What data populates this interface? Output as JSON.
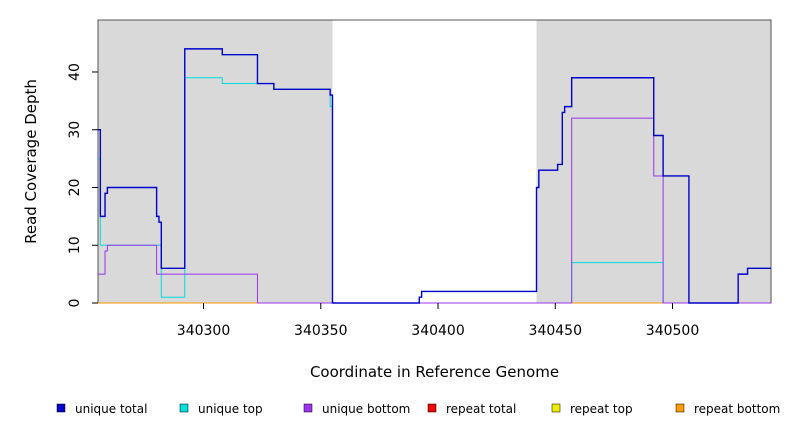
{
  "chart_data": {
    "type": "line",
    "title": "",
    "xlabel": "Coordinate in Reference Genome",
    "ylabel": "Read Coverage Depth",
    "xlim": [
      340255,
      340542
    ],
    "ylim": [
      0,
      49
    ],
    "x_ticks": [
      340300,
      340350,
      340400,
      340450,
      340500
    ],
    "y_ticks": [
      0,
      10,
      20,
      30,
      40
    ],
    "grid": false,
    "legend_position": "bottom",
    "shaded_regions": [
      {
        "x0": 340255,
        "x1": 340355,
        "color": "#d9d9d9"
      },
      {
        "x0": 340442,
        "x1": 340542,
        "color": "#d9d9d9"
      }
    ],
    "series": [
      {
        "name": "unique total",
        "color": "#0000cc",
        "points": [
          [
            340255,
            30
          ],
          [
            340256,
            30
          ],
          [
            340256,
            15
          ],
          [
            340258,
            15
          ],
          [
            340258,
            19
          ],
          [
            340259,
            19
          ],
          [
            340259,
            20
          ],
          [
            340280,
            20
          ],
          [
            340280,
            15
          ],
          [
            340281,
            15
          ],
          [
            340281,
            14
          ],
          [
            340282,
            14
          ],
          [
            340282,
            6
          ],
          [
            340292,
            6
          ],
          [
            340292,
            44
          ],
          [
            340308,
            44
          ],
          [
            340308,
            43
          ],
          [
            340323,
            43
          ],
          [
            340323,
            38
          ],
          [
            340330,
            38
          ],
          [
            340330,
            37
          ],
          [
            340354,
            37
          ],
          [
            340354,
            36
          ],
          [
            340355,
            36
          ],
          [
            340355,
            0
          ],
          [
            340392,
            0
          ],
          [
            340392,
            1
          ],
          [
            340393,
            1
          ],
          [
            340393,
            2
          ],
          [
            340442,
            2
          ],
          [
            340442,
            20
          ],
          [
            340443,
            20
          ],
          [
            340443,
            23
          ],
          [
            340451,
            23
          ],
          [
            340451,
            24
          ],
          [
            340453,
            24
          ],
          [
            340453,
            33
          ],
          [
            340454,
            33
          ],
          [
            340454,
            34
          ],
          [
            340457,
            34
          ],
          [
            340457,
            39
          ],
          [
            340492,
            39
          ],
          [
            340492,
            29
          ],
          [
            340496,
            29
          ],
          [
            340496,
            22
          ],
          [
            340507,
            22
          ],
          [
            340507,
            0
          ],
          [
            340528,
            0
          ],
          [
            340528,
            5
          ],
          [
            340532,
            5
          ],
          [
            340532,
            6
          ],
          [
            340542,
            6
          ]
        ]
      },
      {
        "name": "unique top",
        "color": "#00dddd",
        "points": [
          [
            340255,
            25
          ],
          [
            340256,
            25
          ],
          [
            340256,
            10
          ],
          [
            340282,
            10
          ],
          [
            340282,
            1
          ],
          [
            340292,
            1
          ],
          [
            340292,
            39
          ],
          [
            340308,
            39
          ],
          [
            340308,
            38
          ],
          [
            340323,
            38
          ],
          [
            340323,
            38
          ],
          [
            340330,
            38
          ],
          [
            340330,
            37
          ],
          [
            340354,
            37
          ],
          [
            340354,
            34
          ],
          [
            340355,
            34
          ],
          [
            340355,
            0
          ],
          [
            340457,
            0
          ],
          [
            340457,
            7
          ],
          [
            340496,
            7
          ],
          [
            340496,
            0
          ],
          [
            340542,
            0
          ]
        ]
      },
      {
        "name": "unique bottom",
        "color": "#9933ee",
        "points": [
          [
            340255,
            5
          ],
          [
            340258,
            5
          ],
          [
            340258,
            9
          ],
          [
            340259,
            9
          ],
          [
            340259,
            10
          ],
          [
            340280,
            10
          ],
          [
            340280,
            5
          ],
          [
            340323,
            5
          ],
          [
            340323,
            0
          ],
          [
            340442,
            0
          ],
          [
            340457,
            0
          ],
          [
            340457,
            32
          ],
          [
            340492,
            32
          ],
          [
            340492,
            22
          ],
          [
            340496,
            22
          ],
          [
            340496,
            0
          ],
          [
            340542,
            0
          ]
        ]
      },
      {
        "name": "repeat total",
        "color": "#ee0000",
        "points": [
          [
            340255,
            0
          ],
          [
            340542,
            0
          ]
        ]
      },
      {
        "name": "repeat top",
        "color": "#eeee00",
        "points": [
          [
            340255,
            0
          ],
          [
            340542,
            0
          ]
        ]
      },
      {
        "name": "repeat bottom",
        "color": "#ff9900",
        "points": [
          [
            340255,
            0
          ],
          [
            340542,
            0
          ]
        ]
      }
    ]
  }
}
